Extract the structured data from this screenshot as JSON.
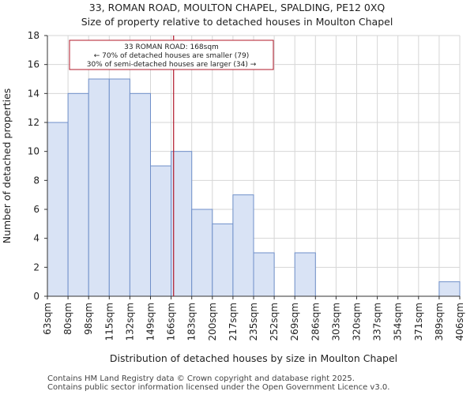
{
  "chart_data": {
    "type": "bar",
    "title": "33, ROMAN ROAD, MOULTON CHAPEL, SPALDING, PE12 0XQ",
    "subtitle": "Size of property relative to detached houses in Moulton Chapel",
    "xlabel": "Distribution of detached houses by size in Moulton Chapel",
    "ylabel": "Number of detached properties",
    "bin_edges": [
      "63sqm",
      "80sqm",
      "98sqm",
      "115sqm",
      "132sqm",
      "149sqm",
      "166sqm",
      "183sqm",
      "200sqm",
      "217sqm",
      "235sqm",
      "252sqm",
      "269sqm",
      "286sqm",
      "303sqm",
      "320sqm",
      "337sqm",
      "354sqm",
      "371sqm",
      "389sqm",
      "406sqm"
    ],
    "values": [
      12,
      14,
      15,
      15,
      14,
      9,
      10,
      6,
      5,
      7,
      3,
      0,
      3,
      0,
      0,
      0,
      0,
      0,
      0,
      1
    ],
    "ylim": [
      0,
      18
    ],
    "yticks": [
      0,
      2,
      4,
      6,
      8,
      10,
      12,
      14,
      16,
      18
    ],
    "marker": {
      "bin_position": 6.12,
      "color": "#b0182a"
    },
    "annotation": {
      "line1": "33 ROMAN ROAD: 168sqm",
      "line2": "← 70% of detached houses are smaller (79)",
      "line3": "30% of semi-detached houses are larger (34) →"
    },
    "colors": {
      "bar_fill": "#d9e3f5",
      "bar_stroke": "#6f8fc9",
      "grid": "#d6d6d6"
    }
  },
  "footer": {
    "line1": "Contains HM Land Registry data © Crown copyright and database right 2025.",
    "line2": "Contains public sector information licensed under the Open Government Licence v3.0."
  }
}
